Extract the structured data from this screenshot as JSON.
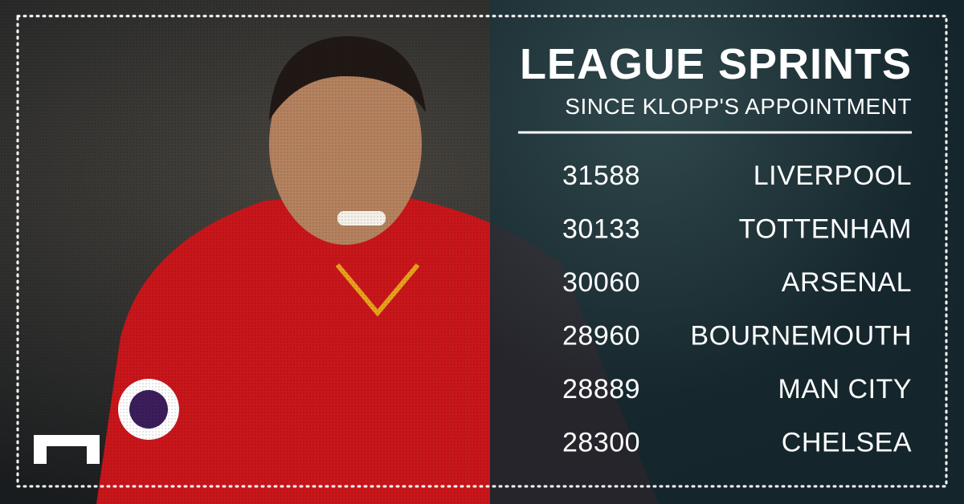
{
  "header": {
    "title": "LEAGUE SPRINTS",
    "subtitle": "SINCE KLOPP'S APPOINTMENT"
  },
  "table": {
    "rows": [
      [
        31588,
        "LIVERPOOL"
      ],
      [
        30133,
        "TOTTENHAM"
      ],
      [
        30060,
        "ARSENAL"
      ],
      [
        28960,
        "BOURNEMOUTH"
      ],
      [
        28889,
        "MAN CITY"
      ],
      [
        28300,
        "CHELSEA"
      ]
    ]
  }
}
